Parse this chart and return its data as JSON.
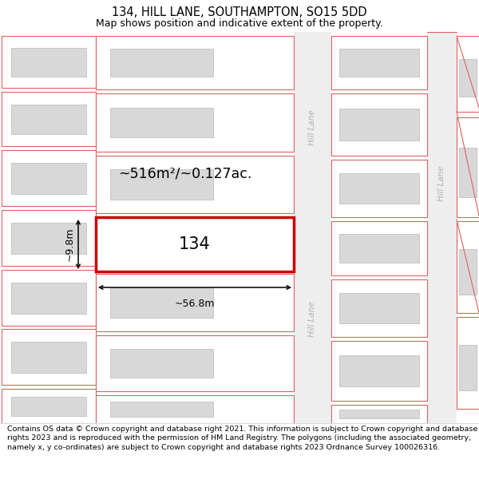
{
  "title": "134, HILL LANE, SOUTHAMPTON, SO15 5DD",
  "subtitle": "Map shows position and indicative extent of the property.",
  "footer": "Contains OS data © Crown copyright and database right 2021. This information is subject to Crown copyright and database rights 2023 and is reproduced with the permission of HM Land Registry. The polygons (including the associated geometry, namely x, y co-ordinates) are subject to Crown copyright and database rights 2023 Ordnance Survey 100026316.",
  "map_bg": "#f7f7f7",
  "building_fill": "#d8d8d8",
  "building_outline": "#c0c0c0",
  "plot_outline": "#e06060",
  "highlight_outline": "#cc0000",
  "road_label_color": "#b0b0b0",
  "road_bg": "#f0f0f0",
  "area_text": "~516m²/~0.127ac.",
  "width_text": "~56.8m",
  "height_text": "~9.8m",
  "number_text": "134",
  "title_fontsize": 10.5,
  "subtitle_fontsize": 9,
  "footer_fontsize": 6.8
}
